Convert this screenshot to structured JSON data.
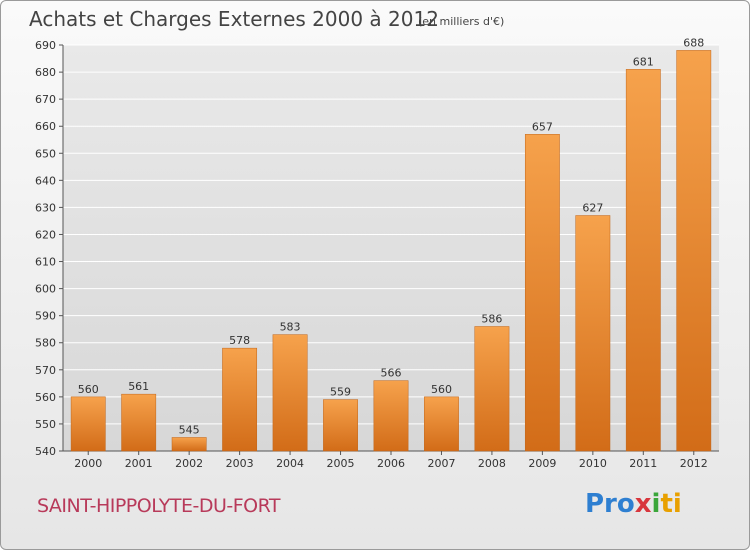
{
  "title": "Achats et Charges Externes 2000 à 2012",
  "unit": "(en milliers d'€)",
  "town": "SAINT-HIPPOLYTE-DU-FORT",
  "logo": {
    "p1": "Pro",
    "p2": "x",
    "p3": "i",
    "p4": "ti"
  },
  "colors": {
    "bar": "#f0923a",
    "bar_dark": "#d8701e",
    "grid": "#ffffff"
  },
  "chart_data": {
    "type": "bar",
    "title": "Achats et Charges Externes 2000 à 2012",
    "subtitle": "(en milliers d'€)",
    "xlabel": "",
    "ylabel": "",
    "categories": [
      "2000",
      "2001",
      "2002",
      "2003",
      "2004",
      "2005",
      "2006",
      "2007",
      "2008",
      "2009",
      "2010",
      "2011",
      "2012"
    ],
    "values": [
      560,
      561,
      545,
      578,
      583,
      559,
      566,
      560,
      586,
      657,
      627,
      681,
      688
    ],
    "ylim": [
      540,
      690
    ],
    "yticks": [
      540,
      550,
      560,
      570,
      580,
      590,
      600,
      610,
      620,
      630,
      640,
      650,
      660,
      670,
      680,
      690
    ],
    "grid": true,
    "legend": "none"
  }
}
